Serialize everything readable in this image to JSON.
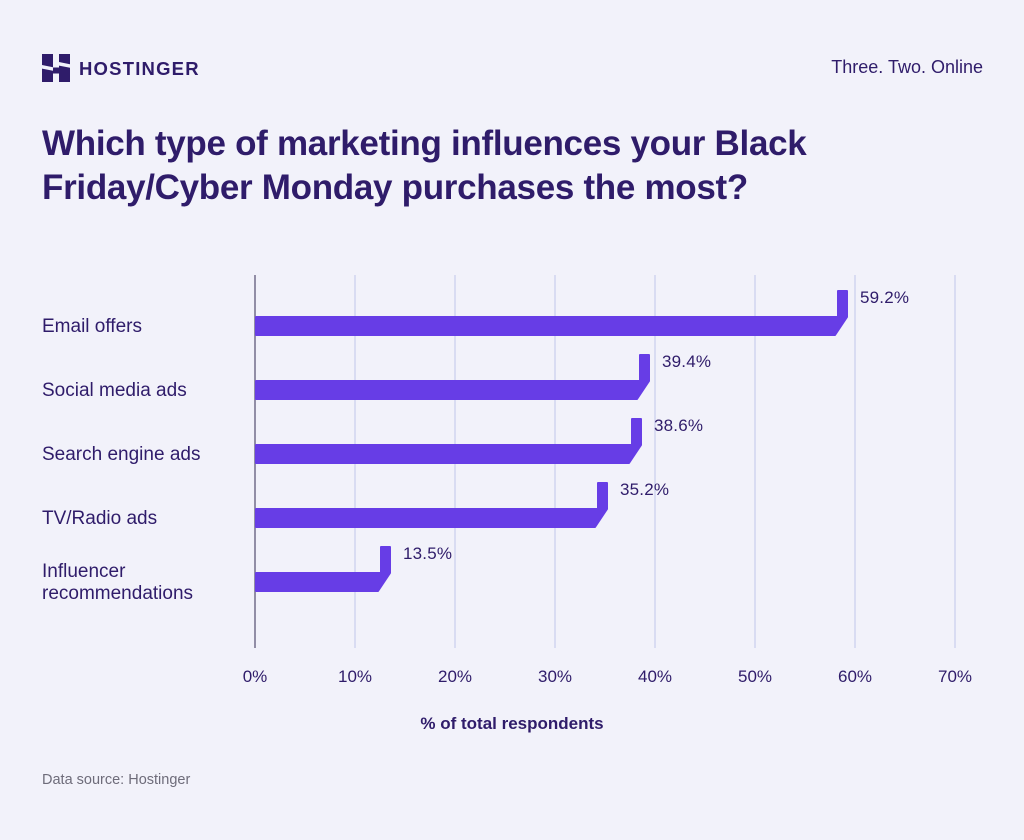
{
  "header": {
    "brand": "HOSTINGER",
    "tagline": "Three. Two. Online"
  },
  "title": {
    "full": "Which type of marketing influences your Black Friday/Cyber Monday purchases the most?",
    "lines": [
      "Which type of marketing influences your Black",
      "Friday/Cyber Monday purchases the most?"
    ]
  },
  "chart_data": {
    "type": "bar",
    "orientation": "horizontal",
    "title": "Which type of marketing influences your Black Friday/Cyber Monday purchases the most?",
    "categories": [
      "Email offers",
      "Social media ads",
      "Search engine ads",
      "TV/Radio ads",
      "Influencer recommendations"
    ],
    "values": [
      59.2,
      39.4,
      38.6,
      35.2,
      13.5
    ],
    "value_labels": [
      "59.2%",
      "39.4%",
      "38.6%",
      "35.2%",
      "13.5%"
    ],
    "xlabel": "% of total respondents",
    "ylabel": "",
    "xlim": [
      0,
      70
    ],
    "x_ticks": [
      0,
      10,
      20,
      30,
      40,
      50,
      60,
      70
    ],
    "x_tick_labels": [
      "0%",
      "10%",
      "20%",
      "30%",
      "40%",
      "50%",
      "60%",
      "70%"
    ],
    "grid": true,
    "legend": false,
    "bar_color": "#673DE6"
  },
  "footer": {
    "source": "Data source: Hostinger"
  },
  "colors": {
    "background": "#F2F2FA",
    "bar": "#673DE6",
    "text_dark": "#2F1C6A",
    "gridline": "#D9DCF2",
    "axis_line": "#928EA6",
    "muted_text": "#6E6C7A"
  }
}
